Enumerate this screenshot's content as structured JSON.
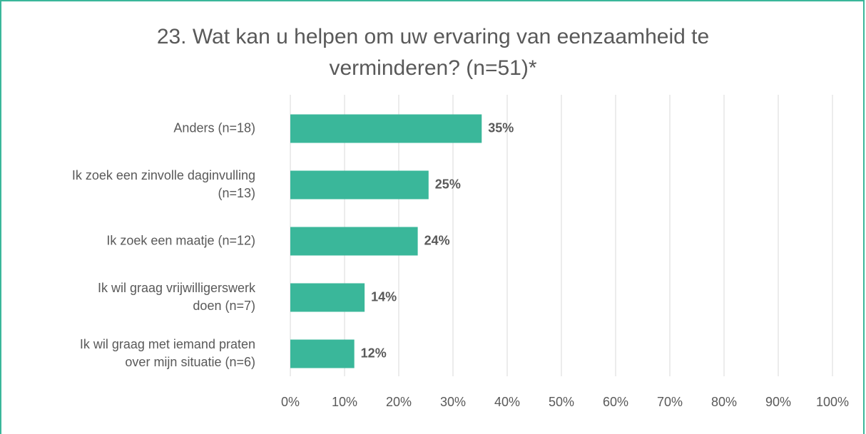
{
  "chart_data": {
    "type": "barh",
    "title": "23. Wat kan u helpen om uw ervaring van eenzaamheid te verminderen? (n=51)*",
    "categories": [
      [
        "Anders (n=18)"
      ],
      [
        "Ik zoek een zinvolle daginvulling",
        "(n=13)"
      ],
      [
        "Ik zoek een maatje (n=12)"
      ],
      [
        "Ik wil graag vrijwilligerswerk",
        "doen (n=7)"
      ],
      [
        "Ik wil graag met iemand praten",
        "over mijn situatie (n=6)"
      ]
    ],
    "values": [
      35.3,
      25.5,
      23.5,
      13.7,
      11.8
    ],
    "value_labels": [
      "35%",
      "25%",
      "24%",
      "14%",
      "12%"
    ],
    "color": "#3ab79a",
    "xlim": [
      0,
      100
    ],
    "xticks": [
      {
        "value": 0,
        "label": "0%"
      },
      {
        "value": 10,
        "label": "10%"
      },
      {
        "value": 20,
        "label": "20%"
      },
      {
        "value": 30,
        "label": "30%"
      },
      {
        "value": 40,
        "label": "40%"
      },
      {
        "value": 50,
        "label": "50%"
      },
      {
        "value": 60,
        "label": "60%"
      },
      {
        "value": 70,
        "label": "70%"
      },
      {
        "value": 80,
        "label": "80%"
      },
      {
        "value": 90,
        "label": "90%"
      },
      {
        "value": 100,
        "label": "100%"
      }
    ],
    "grid": true
  }
}
